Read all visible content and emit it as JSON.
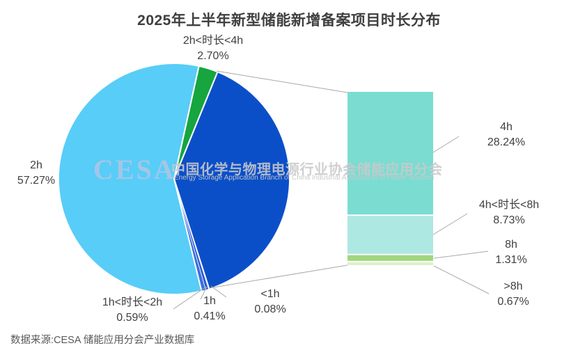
{
  "title": "2025年上半年新型储能新增备案项目时长分布",
  "source": {
    "label": "数据来源:CESA 储能应用分会产业数据库"
  },
  "watermark": {
    "logo": "CESA",
    "cn": "中国化学与物理电源行业协会储能应用分会",
    "en": "Energy Storage Application Branch of China Industrial Association of Power Sources"
  },
  "chart_data": {
    "type": "pie",
    "subtype": "bar-of-pie",
    "title": "2025年上半年新型储能新增备案项目时长分布",
    "unit": "%",
    "pie_slices": [
      {
        "id": "2h-4h",
        "label": "2h<时长<4h",
        "value": 2.7,
        "pct": "2.70%",
        "color": "#16A53F"
      },
      {
        "id": "group",
        "label": "",
        "value": 38.95,
        "pct": "",
        "color": "#0B4FC8",
        "is_detail_group": true
      },
      {
        "id": "lt-1h",
        "label": "<1h",
        "value": 0.08,
        "pct": "0.08%",
        "color": "#6F97EE"
      },
      {
        "id": "1h",
        "label": "1h",
        "value": 0.41,
        "pct": "0.41%",
        "color": "#2B5CD6"
      },
      {
        "id": "1h-2h",
        "label": "1h<时长<2h",
        "value": 0.59,
        "pct": "0.59%",
        "color": "#3E6EE0"
      },
      {
        "id": "2h",
        "label": "2h",
        "value": 57.27,
        "pct": "57.27%",
        "color": "#58CDF8"
      }
    ],
    "bar_segments": [
      {
        "id": "4h",
        "label": "4h",
        "value": 28.24,
        "pct": "28.24%",
        "color": "#7BDCD2"
      },
      {
        "id": "4h-8h",
        "label": "4h<时长<8h",
        "value": 8.73,
        "pct": "8.73%",
        "color": "#AEE8E2"
      },
      {
        "id": "8h",
        "label": "8h",
        "value": 1.31,
        "pct": "1.31%",
        "color": "#A1D57E"
      },
      {
        "id": "gt-8h",
        "label": ">8h",
        "value": 0.67,
        "pct": "0.67%",
        "color": "#DCF1CB"
      }
    ],
    "legend": "none",
    "grid": false
  }
}
